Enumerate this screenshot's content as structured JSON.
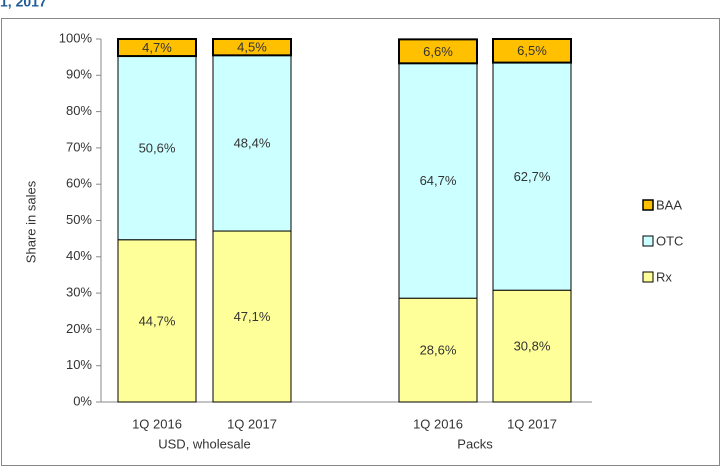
{
  "chart_data": {
    "type": "bar",
    "stacked": true,
    "title": "1, 2017",
    "y_axis_label": "Share in sales",
    "categories": [
      "1Q 2016",
      "1Q 2017",
      "1Q 2016",
      "1Q 2017"
    ],
    "groups": [
      {
        "name": "USD, wholesale",
        "size": 2
      },
      {
        "name": "Packs",
        "size": 2
      }
    ],
    "series": [
      {
        "name": "Rx",
        "color": "#ffff99",
        "values": [
          44.7,
          47.1,
          28.6,
          30.8
        ],
        "value_labels": [
          "44,7%",
          "47,1%",
          "28,6%",
          "30,8%"
        ]
      },
      {
        "name": "OTC",
        "color": "#ccffff",
        "values": [
          50.6,
          48.4,
          64.7,
          62.7
        ],
        "value_labels": [
          "50,6%",
          "48,4%",
          "64,7%",
          "62,7%"
        ]
      },
      {
        "name": "BAA",
        "color": "#ffc000",
        "values": [
          4.7,
          4.5,
          6.6,
          6.5
        ],
        "value_labels": [
          "4,7%",
          "4,5%",
          "6,6%",
          "6,5%"
        ]
      }
    ],
    "ylim": [
      0,
      100
    ],
    "yticks": [
      {
        "value": 0,
        "label": "0%"
      },
      {
        "value": 10,
        "label": "10%"
      },
      {
        "value": 20,
        "label": "20%"
      },
      {
        "value": 30,
        "label": "30%"
      },
      {
        "value": 40,
        "label": "40%"
      },
      {
        "value": 50,
        "label": "50%"
      },
      {
        "value": 60,
        "label": "60%"
      },
      {
        "value": 70,
        "label": "70%"
      },
      {
        "value": 80,
        "label": "80%"
      },
      {
        "value": 90,
        "label": "90%"
      },
      {
        "value": 100,
        "label": "100%"
      }
    ],
    "legend": "right"
  }
}
